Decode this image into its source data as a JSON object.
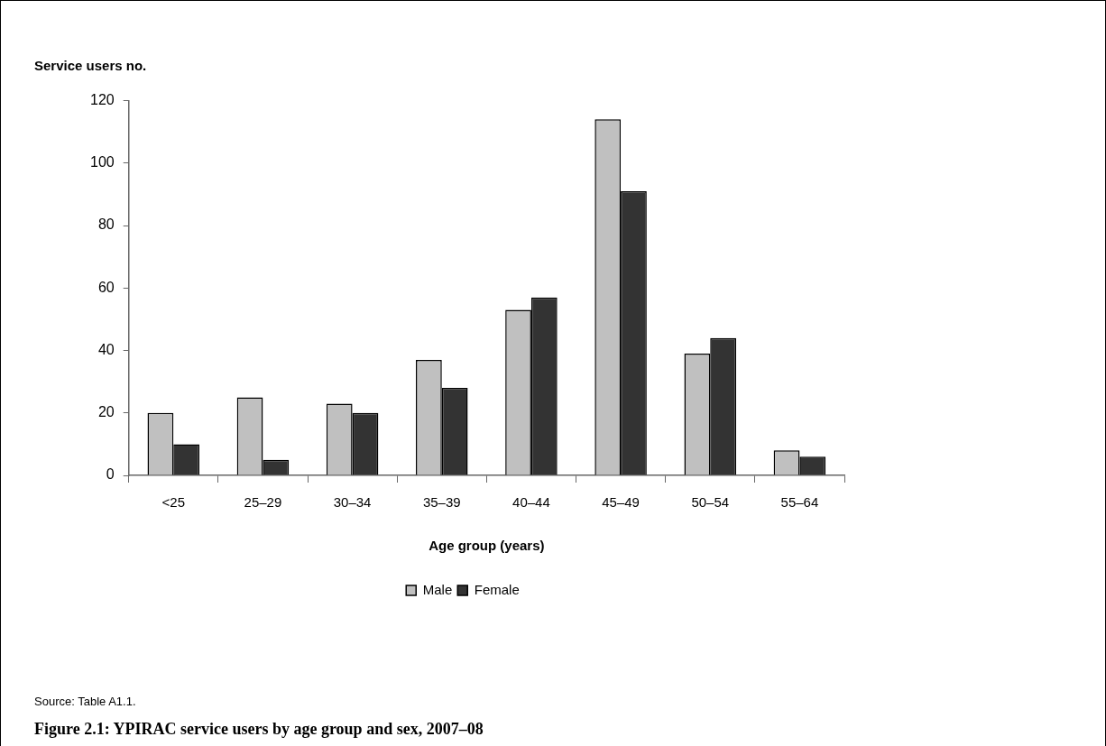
{
  "chart_data": {
    "type": "bar",
    "title": "Figure 2.1: YPIRAC service users by age group and sex, 2007–08",
    "ylabel": "Service users no.",
    "xlabel": "Age group (years)",
    "categories": [
      "<25",
      "25–29",
      "30–34",
      "35–39",
      "40–44",
      "45–49",
      "50–54",
      "55–64"
    ],
    "series": [
      {
        "name": "Male",
        "color": "#c0c0c0",
        "values": [
          20,
          25,
          23,
          37,
          53,
          114,
          39,
          8
        ]
      },
      {
        "name": "Female",
        "color": "#333333",
        "values": [
          10,
          5,
          20,
          28,
          57,
          91,
          44,
          6
        ]
      }
    ],
    "ylim": [
      0,
      120
    ],
    "yticks": [
      0,
      20,
      40,
      60,
      80,
      100,
      120
    ],
    "grid": false,
    "legend": "bottom",
    "annotations": [
      "Source: Table A1.1."
    ]
  }
}
